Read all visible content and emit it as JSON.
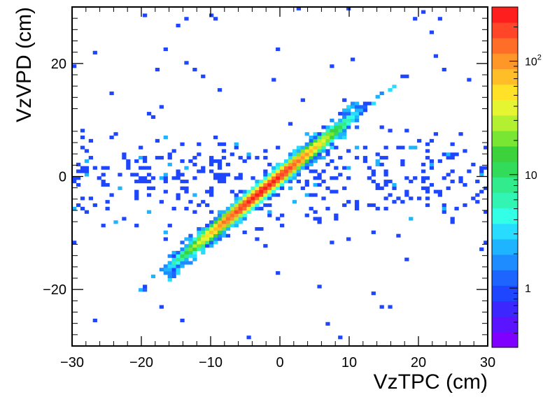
{
  "chart_data": {
    "type": "heatmap",
    "title": "",
    "xlabel": "VzTPC (cm)",
    "ylabel": "VzVPD (cm)",
    "xlim": [
      -30,
      30
    ],
    "ylim": [
      -30,
      30
    ],
    "x_ticks": [
      {
        "value": -30,
        "label": "−30"
      },
      {
        "value": -20,
        "label": "−20"
      },
      {
        "value": -10,
        "label": "−10"
      },
      {
        "value": 0,
        "label": "0"
      },
      {
        "value": 10,
        "label": "10"
      },
      {
        "value": 20,
        "label": "20"
      },
      {
        "value": 30,
        "label": "30"
      }
    ],
    "y_ticks": [
      {
        "value": -20,
        "label": "−20"
      },
      {
        "value": 0,
        "label": "0"
      },
      {
        "value": 20,
        "label": "20"
      }
    ],
    "z_scale": "log",
    "zlim": [
      0.3,
      300
    ],
    "z_ticks": [
      {
        "value": 1,
        "label": "1"
      },
      {
        "value": 10,
        "label": "10"
      },
      {
        "value": 100,
        "label": "10",
        "exponent": "2"
      }
    ],
    "bin_width": 0.6,
    "correlation": {
      "relation": "VzVPD ≈ VzTPC",
      "band_range_x": [
        -17,
        13
      ],
      "peak_count": 250,
      "peak_location": [
        -3,
        -3
      ]
    },
    "background": {
      "x_range": [
        -30,
        30
      ],
      "y_range": [
        -10,
        10
      ],
      "typical_count": 1
    },
    "palette": [
      "#7f00ff",
      "#5a14ff",
      "#3c28ff",
      "#1e46ff",
      "#1e64ff",
      "#1e8cff",
      "#1eb4ff",
      "#28dcff",
      "#32ffe6",
      "#32f5b4",
      "#32eb8c",
      "#32dc5a",
      "#3cd23c",
      "#78e632",
      "#b4f032",
      "#e6f532",
      "#ffe128",
      "#ffbe28",
      "#ff9628",
      "#ff6e28",
      "#ff4628",
      "#ff1e1e"
    ]
  }
}
